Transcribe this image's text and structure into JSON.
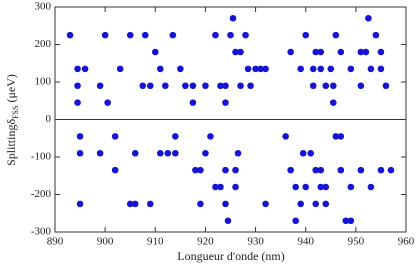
{
  "chart_data": {
    "type": "scatter",
    "x_label": "Longueur d'onde (nm)",
    "y_label": {
      "main": "Splittingδ",
      "sub": "FSS",
      "unit": " (μeV)"
    },
    "color": "#1414d2",
    "x": [
      893,
      894.5,
      894.5,
      894.5,
      896,
      899,
      900,
      900.5,
      903,
      905,
      908,
      907.5,
      909,
      910,
      911,
      912,
      913.5,
      915,
      916,
      917.5,
      917.5,
      920,
      922,
      923,
      924,
      924,
      925,
      925.5,
      926,
      927,
      927,
      928,
      928.5,
      929,
      930,
      931,
      932,
      937,
      939,
      940,
      941.5,
      941.5,
      942,
      943,
      943,
      944,
      945,
      946,
      945.5,
      945.5,
      947,
      949,
      951,
      951,
      952,
      952.5,
      953,
      954,
      955,
      955,
      956,
      895,
      895,
      895,
      899,
      902,
      902,
      905,
      906,
      906,
      909,
      911,
      912.5,
      914,
      914,
      918,
      919,
      919,
      920,
      921,
      922,
      923,
      924,
      924,
      924.5,
      926,
      926,
      926.5,
      932,
      936,
      937,
      938,
      938,
      939,
      939.5,
      940,
      941,
      942,
      942,
      943,
      943,
      944,
      944,
      946,
      947,
      947,
      948,
      949,
      949,
      951,
      953,
      955,
      957
    ],
    "values": [
      225,
      135,
      90,
      45,
      135,
      90,
      225,
      45,
      135,
      225,
      225,
      90,
      90,
      180,
      135,
      90,
      225,
      135,
      90,
      90,
      45,
      90,
      225,
      90,
      90,
      45,
      225,
      270,
      180,
      180,
      90,
      225,
      135,
      90,
      135,
      135,
      135,
      180,
      135,
      225,
      135,
      90,
      180,
      180,
      135,
      90,
      135,
      225,
      45,
      90,
      180,
      135,
      180,
      90,
      180,
      270,
      135,
      225,
      180,
      135,
      90,
      -45,
      -90,
      -225,
      -90,
      -45,
      -135,
      -225,
      -90,
      -225,
      -225,
      -90,
      -90,
      -90,
      -45,
      -135,
      -135,
      -225,
      -90,
      -45,
      -180,
      -180,
      -135,
      -225,
      -270,
      -180,
      -135,
      -90,
      -225,
      -45,
      -135,
      -180,
      -270,
      -225,
      -90,
      -180,
      -90,
      -135,
      -225,
      -135,
      -180,
      -180,
      -225,
      -45,
      -45,
      -135,
      -270,
      -180,
      -270,
      -135,
      -180,
      -135,
      -135
    ],
    "xlim": [
      890,
      960
    ],
    "xticks": [
      890,
      900,
      910,
      920,
      930,
      940,
      950,
      960
    ],
    "ylim": [
      -300,
      300
    ],
    "yticks": [
      -300,
      -200,
      -100,
      0,
      100,
      200,
      300
    ]
  }
}
